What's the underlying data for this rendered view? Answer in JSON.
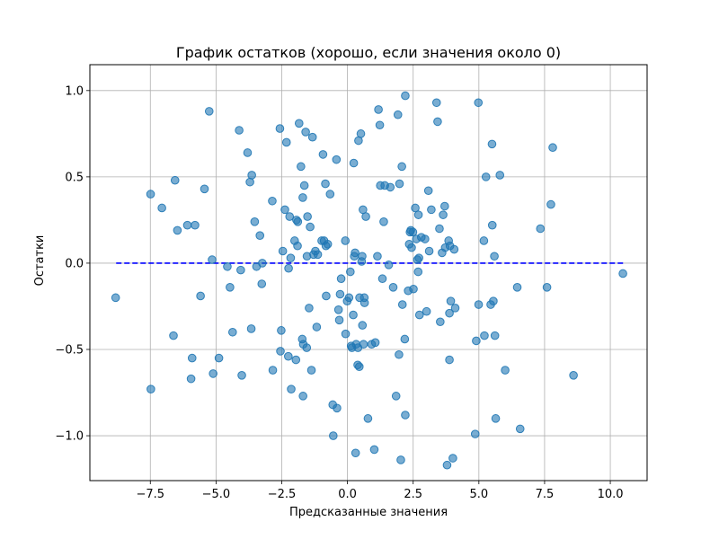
{
  "chart_data": {
    "type": "scatter",
    "title": "График остатков (хорошо, если значения около 0)",
    "xlabel": "Предсказанные значения",
    "ylabel": "Остатки",
    "xlim": [
      -9.8,
      11.4
    ],
    "ylim": [
      -1.26,
      1.15
    ],
    "xticks": [
      -7.5,
      -5.0,
      -2.5,
      0.0,
      2.5,
      5.0,
      7.5,
      10.0
    ],
    "xtick_labels": [
      "−7.5",
      "−5.0",
      "−2.5",
      "0.0",
      "2.5",
      "5.0",
      "7.5",
      "10.0"
    ],
    "yticks": [
      -1.0,
      -0.5,
      0.0,
      0.5,
      1.0
    ],
    "ytick_labels": [
      "−1.0",
      "−0.5",
      "0.0",
      "0.5",
      "1.0"
    ],
    "grid": true,
    "point_color": "#1f77b4",
    "point_opacity": 0.6,
    "reference_line": {
      "y": 0,
      "x_from": -8.8,
      "x_to": 10.5,
      "color": "#0000ff",
      "style": "dashed"
    },
    "points": [
      [
        -8.82,
        -0.2
      ],
      [
        -7.49,
        0.4
      ],
      [
        -7.48,
        -0.73
      ],
      [
        -7.06,
        0.32
      ],
      [
        -6.62,
        -0.42
      ],
      [
        -6.56,
        0.48
      ],
      [
        -6.47,
        0.19
      ],
      [
        -6.09,
        0.22
      ],
      [
        -5.95,
        -0.67
      ],
      [
        -5.91,
        -0.55
      ],
      [
        -5.8,
        0.22
      ],
      [
        -5.59,
        -0.19
      ],
      [
        -5.44,
        0.43
      ],
      [
        -5.26,
        0.88
      ],
      [
        -5.15,
        0.02
      ],
      [
        -5.11,
        -0.64
      ],
      [
        -4.89,
        -0.55
      ],
      [
        -4.57,
        -0.02
      ],
      [
        -4.47,
        -0.14
      ],
      [
        -4.37,
        -0.4
      ],
      [
        -4.12,
        0.77
      ],
      [
        -4.06,
        -0.04
      ],
      [
        -4.02,
        -0.65
      ],
      [
        -3.8,
        0.64
      ],
      [
        -3.71,
        0.47
      ],
      [
        -3.66,
        -0.38
      ],
      [
        -3.64,
        0.51
      ],
      [
        -3.53,
        0.24
      ],
      [
        -3.46,
        -0.02
      ],
      [
        -3.33,
        0.16
      ],
      [
        -3.26,
        -0.12
      ],
      [
        -3.24,
        0.0
      ],
      [
        -2.86,
        0.36
      ],
      [
        -2.84,
        -0.62
      ],
      [
        -2.57,
        0.78
      ],
      [
        -2.55,
        -0.51
      ],
      [
        -2.52,
        -0.39
      ],
      [
        -2.46,
        0.07
      ],
      [
        -2.38,
        0.31
      ],
      [
        -2.32,
        0.7
      ],
      [
        -2.25,
        -0.54
      ],
      [
        -2.24,
        -0.03
      ],
      [
        -2.2,
        0.27
      ],
      [
        -2.16,
        0.03
      ],
      [
        -2.14,
        -0.73
      ],
      [
        -2.01,
        0.13
      ],
      [
        -1.96,
        -0.56
      ],
      [
        -1.94,
        0.25
      ],
      [
        -1.9,
        0.1
      ],
      [
        -1.89,
        0.24
      ],
      [
        -1.84,
        0.81
      ],
      [
        -1.77,
        0.56
      ],
      [
        -1.72,
        -0.44
      ],
      [
        -1.7,
        0.38
      ],
      [
        -1.69,
        -0.77
      ],
      [
        -1.68,
        -0.47
      ],
      [
        -1.64,
        0.45
      ],
      [
        -1.59,
        0.76
      ],
      [
        -1.55,
        -0.49
      ],
      [
        -1.54,
        0.04
      ],
      [
        -1.52,
        0.27
      ],
      [
        -1.46,
        -0.26
      ],
      [
        -1.42,
        0.21
      ],
      [
        -1.37,
        -0.62
      ],
      [
        -1.33,
        0.73
      ],
      [
        -1.29,
        0.05
      ],
      [
        -1.22,
        0.07
      ],
      [
        -1.17,
        -0.37
      ],
      [
        -1.13,
        0.05
      ],
      [
        -0.98,
        0.13
      ],
      [
        -0.93,
        0.63
      ],
      [
        -0.89,
        0.13
      ],
      [
        -0.84,
        0.46
      ],
      [
        -0.82,
        0.1
      ],
      [
        -0.81,
        -0.19
      ],
      [
        -0.75,
        0.11
      ],
      [
        -0.66,
        0.4
      ],
      [
        -0.56,
        -0.82
      ],
      [
        -0.54,
        -1.0
      ],
      [
        -0.42,
        0.6
      ],
      [
        -0.4,
        -0.84
      ],
      [
        -0.34,
        -0.27
      ],
      [
        -0.31,
        -0.33
      ],
      [
        -0.28,
        -0.18
      ],
      [
        -0.24,
        -0.09
      ],
      [
        -0.08,
        0.13
      ],
      [
        -0.07,
        -0.41
      ],
      [
        -0.01,
        -0.22
      ],
      [
        0.06,
        -0.2
      ],
      [
        0.11,
        -0.05
      ],
      [
        0.14,
        -0.48
      ],
      [
        0.17,
        -0.49
      ],
      [
        0.22,
        -0.3
      ],
      [
        0.24,
        0.58
      ],
      [
        0.26,
        0.04
      ],
      [
        0.29,
        0.06
      ],
      [
        0.31,
        -1.1
      ],
      [
        0.33,
        -0.47
      ],
      [
        0.39,
        -0.59
      ],
      [
        0.4,
        -0.49
      ],
      [
        0.42,
        0.71
      ],
      [
        0.45,
        -0.6
      ],
      [
        0.46,
        -0.2
      ],
      [
        0.51,
        0.75
      ],
      [
        0.54,
        0.01
      ],
      [
        0.56,
        0.04
      ],
      [
        0.57,
        -0.36
      ],
      [
        0.59,
        0.31
      ],
      [
        0.61,
        -0.47
      ],
      [
        0.64,
        -0.2
      ],
      [
        0.65,
        -0.23
      ],
      [
        0.7,
        0.27
      ],
      [
        0.78,
        -0.9
      ],
      [
        0.92,
        -0.47
      ],
      [
        1.02,
        -1.08
      ],
      [
        1.06,
        -0.46
      ],
      [
        1.14,
        0.04
      ],
      [
        1.18,
        0.89
      ],
      [
        1.23,
        0.8
      ],
      [
        1.25,
        0.45
      ],
      [
        1.33,
        -0.09
      ],
      [
        1.38,
        0.24
      ],
      [
        1.42,
        0.45
      ],
      [
        1.57,
        -0.01
      ],
      [
        1.63,
        0.44
      ],
      [
        1.74,
        -0.14
      ],
      [
        1.85,
        -0.77
      ],
      [
        1.92,
        0.86
      ],
      [
        1.96,
        -0.53
      ],
      [
        1.98,
        0.46
      ],
      [
        2.03,
        -1.14
      ],
      [
        2.07,
        0.56
      ],
      [
        2.09,
        -0.24
      ],
      [
        2.18,
        -0.44
      ],
      [
        2.2,
        0.97
      ],
      [
        2.2,
        -0.88
      ],
      [
        2.31,
        -0.16
      ],
      [
        2.35,
        0.11
      ],
      [
        2.38,
        0.18
      ],
      [
        2.41,
        0.19
      ],
      [
        2.44,
        0.09
      ],
      [
        2.49,
        0.18
      ],
      [
        2.51,
        -0.15
      ],
      [
        2.58,
        0.32
      ],
      [
        2.62,
        0.14
      ],
      [
        2.66,
        0.02
      ],
      [
        2.69,
        -0.05
      ],
      [
        2.7,
        0.28
      ],
      [
        2.72,
        0.03
      ],
      [
        2.74,
        -0.3
      ],
      [
        2.81,
        0.15
      ],
      [
        2.95,
        0.14
      ],
      [
        3.01,
        -0.28
      ],
      [
        3.08,
        0.42
      ],
      [
        3.11,
        0.07
      ],
      [
        3.19,
        0.31
      ],
      [
        3.39,
        0.93
      ],
      [
        3.43,
        0.82
      ],
      [
        3.5,
        0.2
      ],
      [
        3.53,
        -0.34
      ],
      [
        3.6,
        0.06
      ],
      [
        3.64,
        0.28
      ],
      [
        3.7,
        0.33
      ],
      [
        3.72,
        0.09
      ],
      [
        3.79,
        -1.17
      ],
      [
        3.85,
        0.13
      ],
      [
        3.88,
        -0.56
      ],
      [
        3.88,
        -0.29
      ],
      [
        3.9,
        0.1
      ],
      [
        3.93,
        -0.22
      ],
      [
        4.01,
        -1.13
      ],
      [
        4.06,
        0.08
      ],
      [
        4.1,
        -0.26
      ],
      [
        4.86,
        -0.99
      ],
      [
        4.9,
        -0.45
      ],
      [
        4.98,
        0.93
      ],
      [
        4.99,
        -0.24
      ],
      [
        5.19,
        0.13
      ],
      [
        5.21,
        -0.42
      ],
      [
        5.27,
        0.5
      ],
      [
        5.45,
        -0.24
      ],
      [
        5.5,
        0.69
      ],
      [
        5.51,
        0.22
      ],
      [
        5.55,
        -0.22
      ],
      [
        5.59,
        0.04
      ],
      [
        5.61,
        -0.42
      ],
      [
        5.64,
        -0.9
      ],
      [
        5.8,
        0.51
      ],
      [
        6.0,
        -0.62
      ],
      [
        6.46,
        -0.14
      ],
      [
        6.57,
        -0.96
      ],
      [
        7.34,
        0.2
      ],
      [
        7.59,
        -0.14
      ],
      [
        7.74,
        0.34
      ],
      [
        7.81,
        0.67
      ],
      [
        8.6,
        -0.65
      ],
      [
        10.48,
        -0.06
      ]
    ]
  }
}
